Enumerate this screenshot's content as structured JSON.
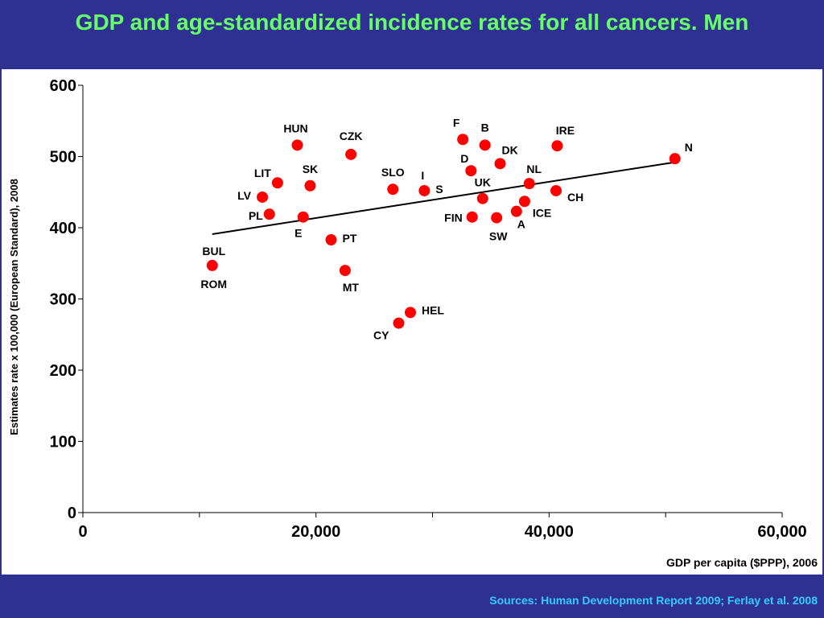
{
  "slide": {
    "title": "GDP and age-standardized incidence rates for all cancers. Men",
    "sources": "Sources: Human Development Report 2009; Ferlay et al. 2008"
  },
  "colors": {
    "background": "#2e3192",
    "title": "#66ff66",
    "sources": "#33ccff",
    "point": "#ff0000",
    "trend": "#000000"
  },
  "chart_data": {
    "type": "scatter",
    "title": "GDP and age-standardized incidence rates for all cancers. Men",
    "xlabel": "GDP per capita ($PPP), 2006",
    "ylabel": "Estimates rate x 100,000 (European Standard), 2008",
    "xlim": [
      0,
      60000
    ],
    "ylim": [
      0,
      600
    ],
    "x_ticks": [
      0,
      20000,
      40000,
      60000
    ],
    "x_tick_labels": [
      "0",
      "20,000",
      "40,000",
      "60,000"
    ],
    "y_ticks": [
      0,
      100,
      200,
      300,
      400,
      500,
      600
    ],
    "y_tick_labels": [
      "0",
      "100",
      "200",
      "300",
      "400",
      "500",
      "600"
    ],
    "grid": false,
    "legend": "none",
    "points": [
      {
        "label": "HUN",
        "x": 18400,
        "y": 516
      },
      {
        "label": "CZK",
        "x": 23000,
        "y": 503
      },
      {
        "label": "LIT",
        "x": 16700,
        "y": 463
      },
      {
        "label": "SK",
        "x": 19500,
        "y": 459
      },
      {
        "label": "LV",
        "x": 15400,
        "y": 443
      },
      {
        "label": "PL",
        "x": 16000,
        "y": 419
      },
      {
        "label": "E",
        "x": 18900,
        "y": 415
      },
      {
        "label": "PT",
        "x": 21300,
        "y": 383
      },
      {
        "label": "MT",
        "x": 22500,
        "y": 340
      },
      {
        "label": "BUL",
        "x": 11100,
        "y": 347
      },
      {
        "label": "ROM",
        "x": 11100,
        "y": 347
      },
      {
        "label": "SLO",
        "x": 26600,
        "y": 454
      },
      {
        "label": "I",
        "x": 29300,
        "y": 452
      },
      {
        "label": "S",
        "x": 29300,
        "y": 452
      },
      {
        "label": "HEL",
        "x": 28100,
        "y": 281
      },
      {
        "label": "CY",
        "x": 27100,
        "y": 266
      },
      {
        "label": "F",
        "x": 32600,
        "y": 524
      },
      {
        "label": "B",
        "x": 34500,
        "y": 516
      },
      {
        "label": "D",
        "x": 33300,
        "y": 480
      },
      {
        "label": "DK",
        "x": 35800,
        "y": 490
      },
      {
        "label": "UK",
        "x": 34300,
        "y": 441
      },
      {
        "label": "FIN",
        "x": 33400,
        "y": 415
      },
      {
        "label": "SW",
        "x": 35500,
        "y": 414
      },
      {
        "label": "A",
        "x": 37200,
        "y": 423
      },
      {
        "label": "ICE",
        "x": 37900,
        "y": 437
      },
      {
        "label": "NL",
        "x": 38300,
        "y": 462
      },
      {
        "label": "IRE",
        "x": 40700,
        "y": 515
      },
      {
        "label": "CH",
        "x": 40600,
        "y": 452
      },
      {
        "label": "N",
        "x": 50800,
        "y": 497
      }
    ],
    "trendline": {
      "x": [
        11100,
        50800
      ],
      "y": [
        391,
        492
      ]
    }
  }
}
